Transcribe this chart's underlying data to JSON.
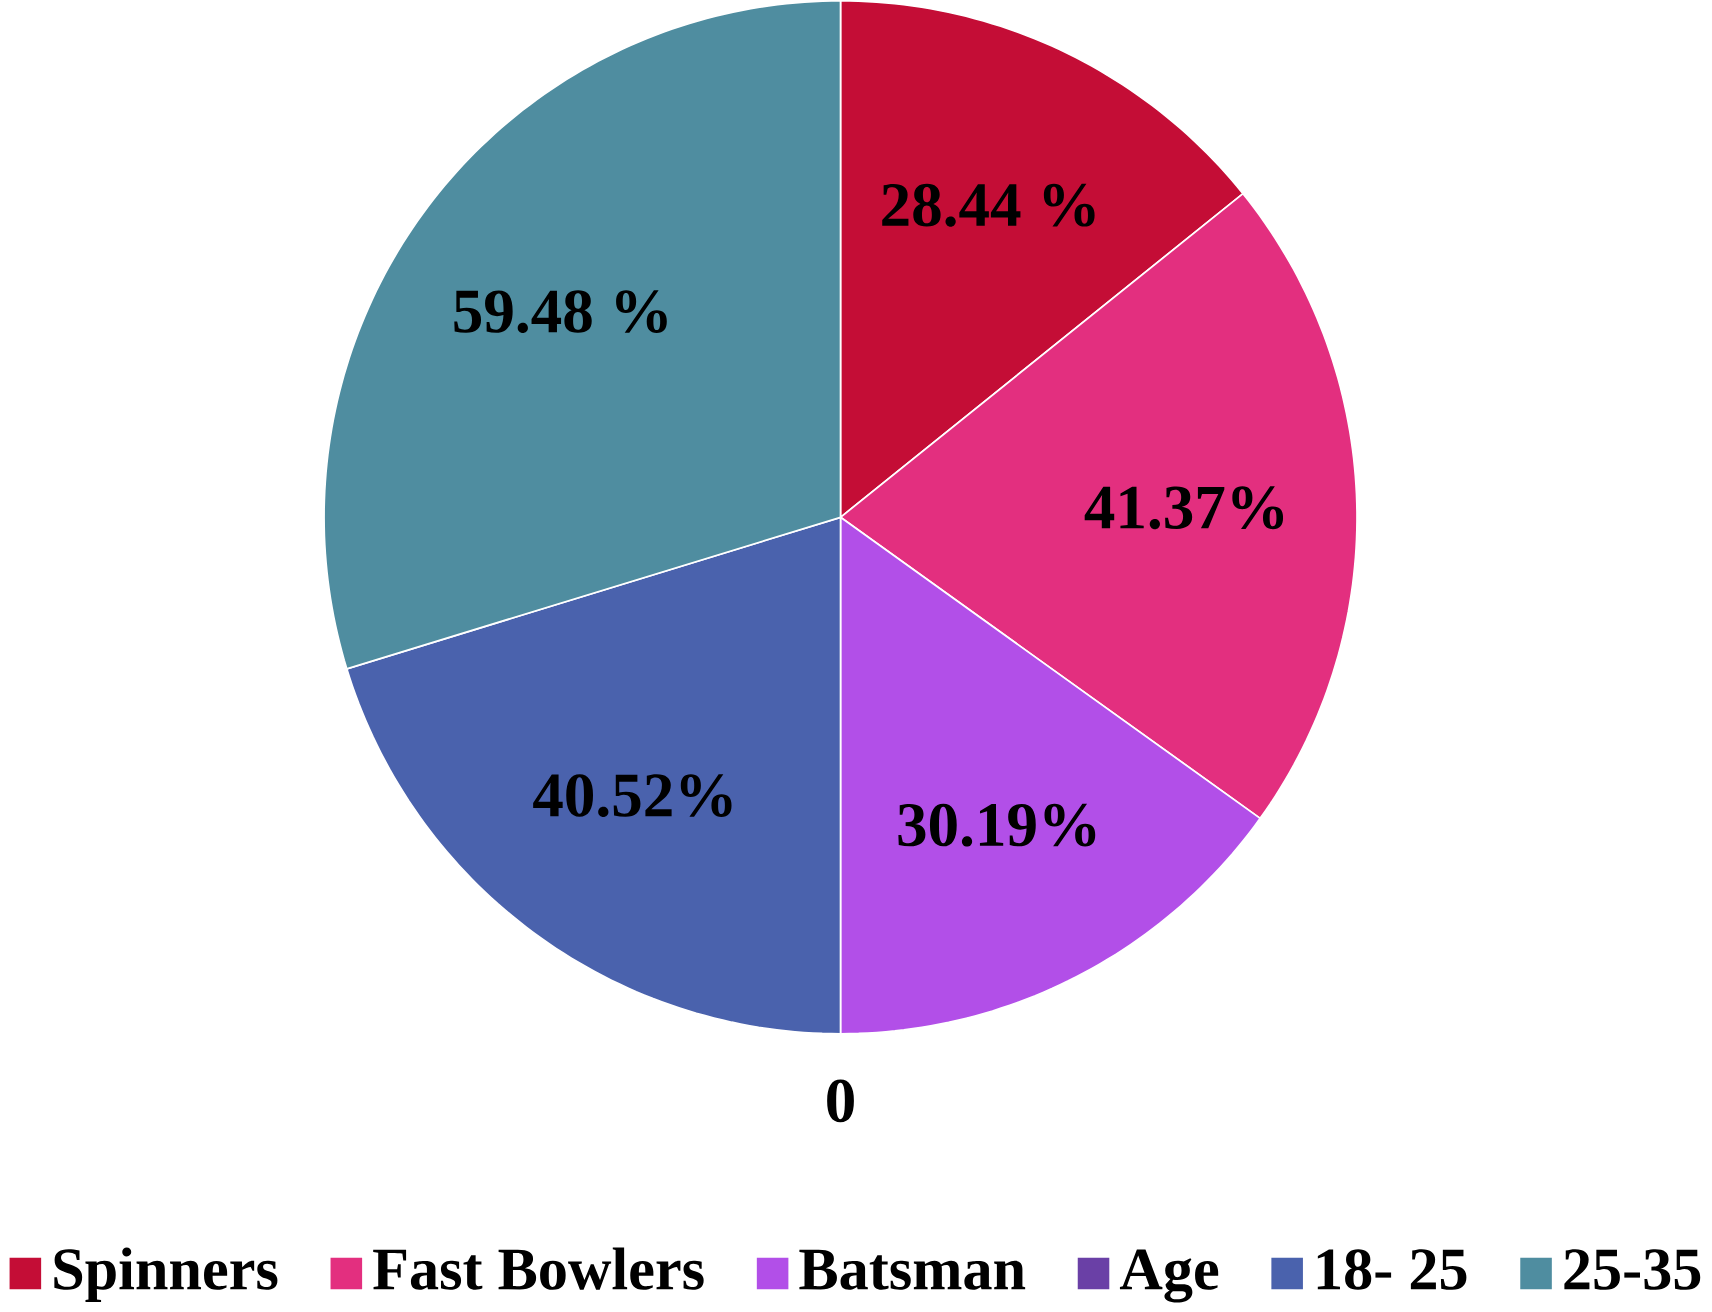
{
  "chart_data": {
    "type": "pie",
    "categories": [
      "Spinners",
      "Fast Bowlers",
      "Batsman",
      "Age",
      "18- 25",
      "25-35"
    ],
    "values": [
      28.44,
      41.37,
      30.19,
      0,
      40.52,
      59.48
    ],
    "colors": [
      "#c40d36",
      "#e32f7f",
      "#b24fe8",
      "#6a40a6",
      "#4a62ad",
      "#4f8da0"
    ],
    "value_labels": [
      "28.44 %",
      "41.37%",
      "30.19%",
      "0",
      "40.52%",
      "59.48 %"
    ],
    "legend": "bottom"
  }
}
